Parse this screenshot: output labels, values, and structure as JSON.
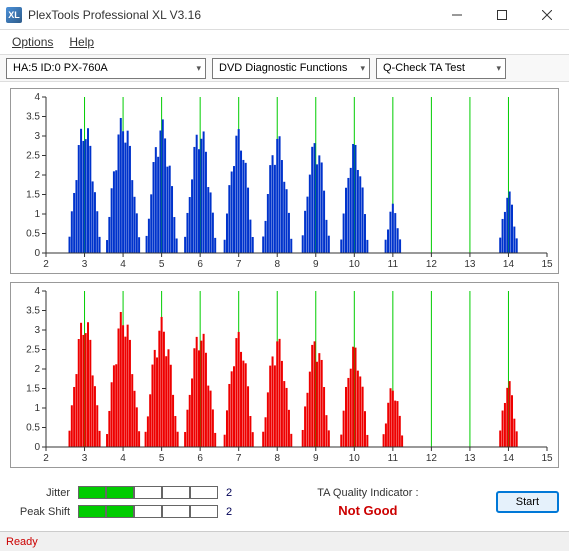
{
  "window": {
    "title": "PlexTools Professional XL V3.16",
    "icon_text": "XL"
  },
  "menu": {
    "options": "Options",
    "help": "Help"
  },
  "toolbar": {
    "device": "HA:5 ID:0   PX-760A",
    "category": "DVD Diagnostic Functions",
    "test": "Q-Check TA Test"
  },
  "charts": {
    "x_min": 2,
    "x_max": 15,
    "x_step": 1,
    "y_min": 0,
    "y_max": 4,
    "y_step": 0.5,
    "grid_color": "#00cc00",
    "axis_color": "#333333",
    "tick_font_size": 10,
    "top": {
      "bar_color": "#0033cc",
      "peaks_x": [
        3,
        4,
        5,
        6,
        7,
        8,
        9,
        10,
        11,
        14
      ],
      "peaks_h": [
        3.0,
        3.1,
        3.0,
        2.9,
        2.8,
        2.7,
        2.6,
        2.5,
        1.1,
        1.4
      ],
      "peaks_w": [
        0.9,
        0.95,
        0.9,
        0.9,
        0.85,
        0.85,
        0.8,
        0.8,
        0.5,
        0.55
      ]
    },
    "bottom": {
      "bar_color": "#ee0000",
      "peaks_x": [
        3,
        4,
        5,
        6,
        7,
        8,
        9,
        10,
        11,
        14
      ],
      "peaks_h": [
        3.0,
        3.1,
        2.9,
        2.7,
        2.6,
        2.5,
        2.5,
        2.3,
        1.4,
        1.5
      ],
      "peaks_w": [
        0.9,
        0.95,
        0.95,
        0.9,
        0.85,
        0.85,
        0.8,
        0.8,
        0.6,
        0.55
      ]
    }
  },
  "meters": {
    "jitter": {
      "label": "Jitter",
      "filled": 2,
      "total": 5,
      "value": "2"
    },
    "peakshift": {
      "label": "Peak Shift",
      "filled": 2,
      "total": 5,
      "value": "2"
    }
  },
  "quality": {
    "label": "TA Quality Indicator :",
    "value": "Not Good",
    "value_color": "#cc0000"
  },
  "buttons": {
    "start": "Start"
  },
  "status": {
    "text": "Ready"
  }
}
